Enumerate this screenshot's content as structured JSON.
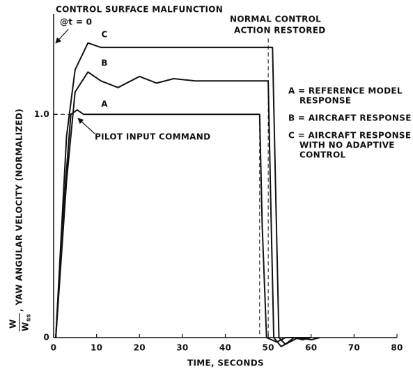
{
  "chart_data": {
    "type": "line",
    "title_annotation": "CONTROL SURFACE MALFUNCTION",
    "origin_annotation": "@t = 0",
    "restore_annotation": [
      "NORMAL CONTROL",
      "ACTION RESTORED"
    ],
    "input_annotation": "PILOT INPUT COMMAND",
    "xlabel": "TIME, SECONDS",
    "ylabel": ", YAW ANGULAR VELOCITY (NORMALIZED)",
    "ylabel_fraction": {
      "numerator": "W",
      "denominator": "W",
      "subscript": "ss"
    },
    "xlim": [
      0,
      80
    ],
    "ylim": [
      0,
      1.45
    ],
    "xticks": [
      0,
      10,
      20,
      30,
      40,
      50,
      60,
      70,
      80
    ],
    "yticks": [
      0,
      {
        "value": 1,
        "label": "1.0"
      }
    ],
    "color": "#111111",
    "series": [
      {
        "name": "A",
        "legend": [
          "A = REFERENCE MODEL",
          "RESPONSE"
        ],
        "x": [
          0.5,
          2,
          4,
          5.5,
          7,
          20,
          48,
          48.6,
          49.6,
          52,
          54,
          60
        ],
        "values": [
          0,
          0.5,
          1.0,
          1.02,
          1.0,
          1.0,
          1.0,
          0.5,
          0,
          -0.02,
          0,
          0
        ]
      },
      {
        "name": "B",
        "legend": [
          "B = AIRCRAFT RESPONSE"
        ],
        "x": [
          0.5,
          3,
          5,
          8,
          11,
          15,
          20,
          24,
          28,
          33,
          40,
          50,
          50.6,
          51.3,
          53,
          57,
          60,
          62
        ],
        "values": [
          0,
          0.7,
          1.1,
          1.19,
          1.15,
          1.12,
          1.17,
          1.14,
          1.16,
          1.15,
          1.15,
          1.15,
          0.6,
          0,
          -0.04,
          0,
          -0.01,
          0
        ]
      },
      {
        "name": "C",
        "legend": [
          "C = AIRCRAFT RESPONSE",
          "WITH NO ADAPTIVE",
          "CONTROL"
        ],
        "x": [
          0.5,
          3,
          5,
          8,
          11,
          14,
          30,
          51,
          51.8,
          52.5,
          54,
          56,
          58,
          60
        ],
        "values": [
          0,
          0.9,
          1.2,
          1.32,
          1.3,
          1.3,
          1.3,
          1.3,
          0.6,
          0,
          -0.03,
          0,
          -0.01,
          0
        ]
      }
    ],
    "dashed_lines": [
      {
        "x": [
          0,
          4
        ],
        "y": [
          1,
          1
        ]
      },
      {
        "x": [
          48,
          48
        ],
        "y": [
          1,
          0
        ]
      },
      {
        "x": [
          50,
          50
        ],
        "y": [
          1.34,
          0
        ]
      }
    ]
  }
}
